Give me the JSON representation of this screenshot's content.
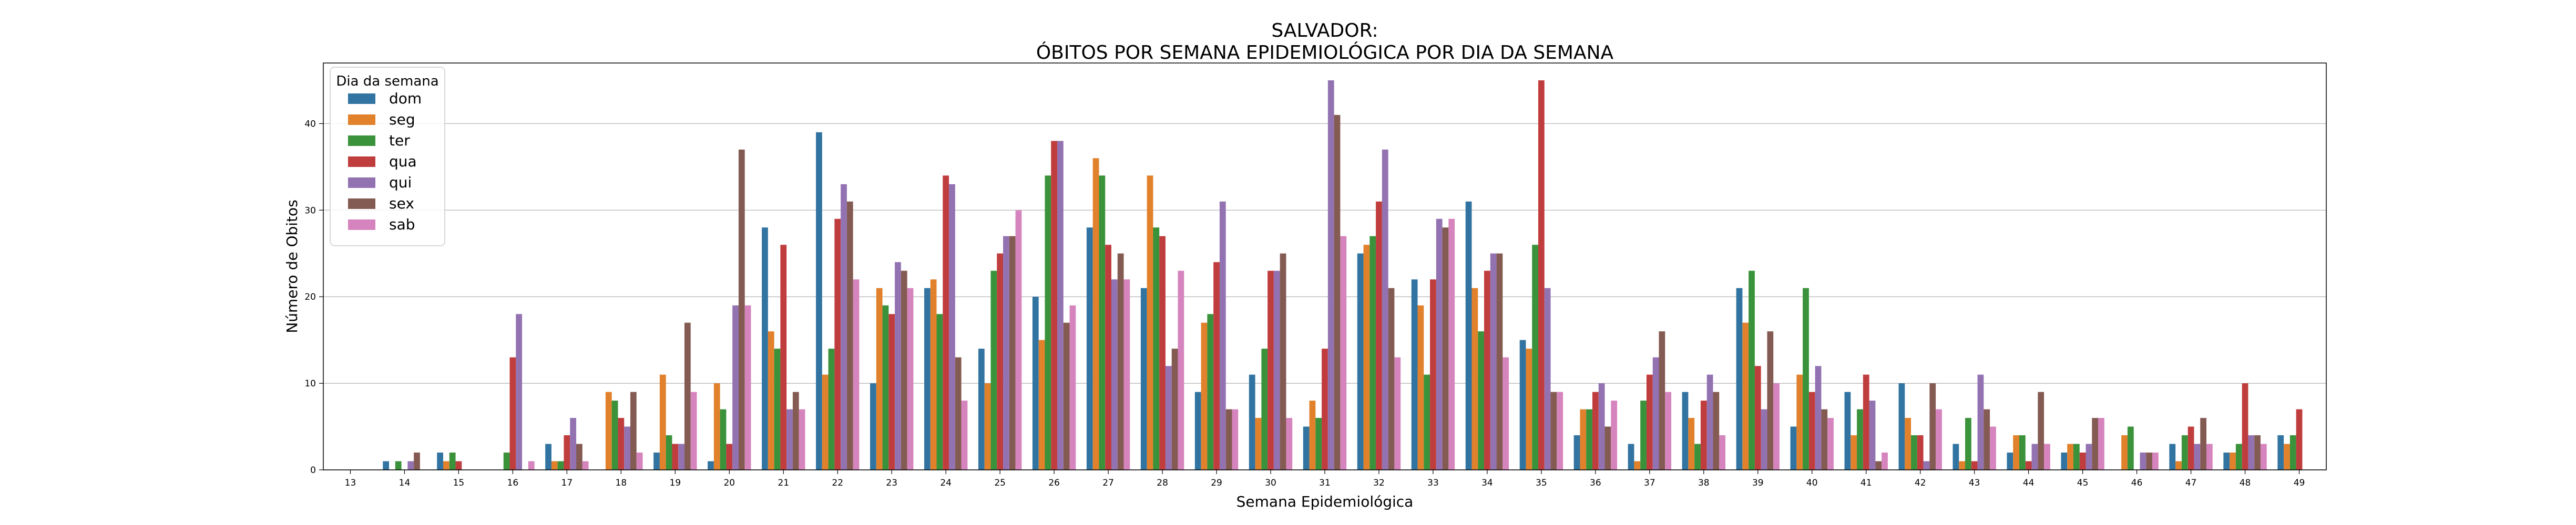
{
  "title_lines": [
    "SALVADOR:",
    "ÓBITOS POR SEMANA EPIDEMIOLÓGICA POR DIA DA SEMANA"
  ],
  "chart_data": {
    "type": "bar",
    "title": "SALVADOR: ÓBITOS POR SEMANA EPIDEMIOLÓGICA POR DIA DA SEMANA",
    "xlabel": "Semana Epidemiológica",
    "ylabel": "Número de Obitos",
    "ylim": [
      0,
      47
    ],
    "yticks": [
      0,
      10,
      20,
      30,
      40
    ],
    "grid": "y",
    "legend": {
      "title": "Dia da semana",
      "placement": "top-left"
    },
    "categories": [
      "13",
      "14",
      "15",
      "16",
      "17",
      "18",
      "19",
      "20",
      "21",
      "22",
      "23",
      "24",
      "25",
      "26",
      "27",
      "28",
      "29",
      "30",
      "31",
      "32",
      "33",
      "34",
      "35",
      "36",
      "37",
      "38",
      "39",
      "40",
      "41",
      "42",
      "43",
      "44",
      "45",
      "46",
      "47",
      "48",
      "49"
    ],
    "series": [
      {
        "name": "dom",
        "color": "#3274a1",
        "values": [
          0,
          1,
          2,
          0,
          3,
          0,
          2,
          1,
          28,
          39,
          10,
          21,
          14,
          20,
          28,
          21,
          9,
          11,
          5,
          25,
          22,
          31,
          15,
          4,
          3,
          9,
          21,
          5,
          9,
          10,
          3,
          2,
          2,
          0,
          3,
          2,
          4
        ]
      },
      {
        "name": "seg",
        "color": "#e1812c",
        "values": [
          0,
          0,
          1,
          0,
          1,
          9,
          11,
          10,
          16,
          11,
          21,
          22,
          10,
          15,
          36,
          34,
          17,
          6,
          8,
          26,
          19,
          21,
          14,
          7,
          1,
          6,
          17,
          11,
          4,
          6,
          1,
          4,
          3,
          4,
          1,
          2,
          3
        ]
      },
      {
        "name": "ter",
        "color": "#3a923a",
        "values": [
          0,
          1,
          2,
          2,
          1,
          8,
          4,
          7,
          14,
          14,
          19,
          18,
          23,
          34,
          34,
          28,
          18,
          14,
          6,
          27,
          11,
          16,
          26,
          7,
          8,
          3,
          23,
          21,
          7,
          4,
          6,
          4,
          3,
          5,
          4,
          3,
          4
        ]
      },
      {
        "name": "qua",
        "color": "#c03d3e",
        "values": [
          0,
          0,
          1,
          13,
          4,
          6,
          3,
          3,
          26,
          29,
          18,
          34,
          25,
          38,
          26,
          27,
          24,
          23,
          14,
          31,
          22,
          23,
          45,
          9,
          11,
          8,
          12,
          9,
          11,
          4,
          1,
          1,
          2,
          0,
          5,
          10,
          7
        ]
      },
      {
        "name": "qui",
        "color": "#9372b2",
        "values": [
          0,
          1,
          0,
          18,
          6,
          5,
          3,
          19,
          7,
          33,
          24,
          33,
          27,
          38,
          22,
          12,
          31,
          23,
          45,
          37,
          29,
          25,
          21,
          10,
          13,
          11,
          7,
          12,
          8,
          1,
          11,
          3,
          3,
          2,
          3,
          4,
          0
        ]
      },
      {
        "name": "sex",
        "color": "#845b53",
        "values": [
          0,
          2,
          0,
          0,
          3,
          9,
          17,
          37,
          9,
          31,
          23,
          13,
          27,
          17,
          25,
          14,
          7,
          25,
          41,
          21,
          28,
          25,
          9,
          5,
          16,
          9,
          16,
          7,
          1,
          10,
          7,
          9,
          6,
          2,
          6,
          4,
          0
        ]
      },
      {
        "name": "sab",
        "color": "#d684bd",
        "values": [
          0,
          0,
          0,
          1,
          1,
          2,
          9,
          19,
          7,
          22,
          21,
          8,
          30,
          19,
          22,
          23,
          7,
          6,
          27,
          13,
          29,
          13,
          9,
          8,
          9,
          4,
          10,
          6,
          2,
          7,
          5,
          3,
          6,
          2,
          3,
          3,
          0
        ]
      }
    ]
  }
}
